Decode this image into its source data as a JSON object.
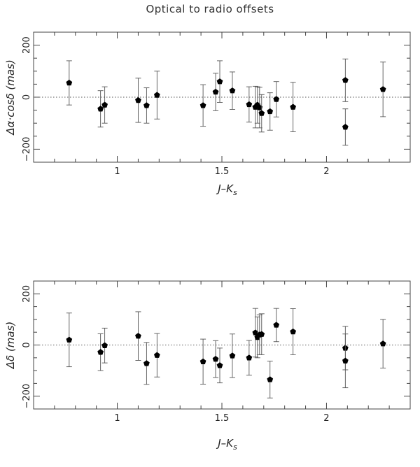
{
  "title": "Optical to radio offsets",
  "chart_data": [
    {
      "type": "scatter",
      "ylabel": "Δα·cosδ (mas)",
      "xlabel": "J–K",
      "xlabel_sub": "s",
      "xlim": [
        0.6,
        2.4
      ],
      "ylim": [
        -250,
        250
      ],
      "xticks": [
        1,
        1.5,
        2
      ],
      "xtick_labels": [
        "1",
        "1.5",
        "2"
      ],
      "yticks": [
        -200,
        0,
        200
      ],
      "ytick_labels": [
        "−200",
        "0",
        "200"
      ],
      "reference_line": 0,
      "points": [
        {
          "x": 0.77,
          "y": 55,
          "err": 85
        },
        {
          "x": 0.92,
          "y": -45,
          "err": 70
        },
        {
          "x": 0.94,
          "y": -30,
          "err": 70
        },
        {
          "x": 1.1,
          "y": -12,
          "err": 85
        },
        {
          "x": 1.14,
          "y": -32,
          "err": 68
        },
        {
          "x": 1.19,
          "y": 8,
          "err": 92
        },
        {
          "x": 1.41,
          "y": -32,
          "err": 80
        },
        {
          "x": 1.47,
          "y": 20,
          "err": 72
        },
        {
          "x": 1.49,
          "y": 60,
          "err": 80
        },
        {
          "x": 1.55,
          "y": 25,
          "err": 72
        },
        {
          "x": 1.63,
          "y": -28,
          "err": 68
        },
        {
          "x": 1.66,
          "y": -38,
          "err": 80
        },
        {
          "x": 1.67,
          "y": -30,
          "err": 70
        },
        {
          "x": 1.68,
          "y": -40,
          "err": 78
        },
        {
          "x": 1.69,
          "y": -62,
          "err": 72
        },
        {
          "x": 1.73,
          "y": -55,
          "err": 72
        },
        {
          "x": 1.76,
          "y": -8,
          "err": 68
        },
        {
          "x": 1.84,
          "y": -38,
          "err": 95
        },
        {
          "x": 2.09,
          "y": 65,
          "err": 82
        },
        {
          "x": 2.09,
          "y": -115,
          "err": 70
        },
        {
          "x": 2.27,
          "y": 30,
          "err": 105
        }
      ]
    },
    {
      "type": "scatter",
      "ylabel": "Δδ (mas)",
      "xlabel": "J–K",
      "xlabel_sub": "s",
      "xlim": [
        0.6,
        2.4
      ],
      "ylim": [
        -250,
        250
      ],
      "xticks": [
        1,
        1.5,
        2
      ],
      "xtick_labels": [
        "1",
        "1.5",
        "2"
      ],
      "yticks": [
        -200,
        0,
        200
      ],
      "ytick_labels": [
        "−200",
        "0",
        "200"
      ],
      "reference_line": 0,
      "points": [
        {
          "x": 0.77,
          "y": 20,
          "err": 105
        },
        {
          "x": 0.92,
          "y": -28,
          "err": 72
        },
        {
          "x": 0.94,
          "y": -2,
          "err": 68
        },
        {
          "x": 1.1,
          "y": 35,
          "err": 95
        },
        {
          "x": 1.14,
          "y": -72,
          "err": 82
        },
        {
          "x": 1.19,
          "y": -40,
          "err": 85
        },
        {
          "x": 1.41,
          "y": -65,
          "err": 88
        },
        {
          "x": 1.47,
          "y": -55,
          "err": 72
        },
        {
          "x": 1.49,
          "y": -80,
          "err": 68
        },
        {
          "x": 1.55,
          "y": -42,
          "err": 85
        },
        {
          "x": 1.63,
          "y": -50,
          "err": 68
        },
        {
          "x": 1.66,
          "y": 48,
          "err": 95
        },
        {
          "x": 1.67,
          "y": 30,
          "err": 80
        },
        {
          "x": 1.68,
          "y": 40,
          "err": 78
        },
        {
          "x": 1.69,
          "y": 42,
          "err": 80
        },
        {
          "x": 1.73,
          "y": -135,
          "err": 72
        },
        {
          "x": 1.76,
          "y": 78,
          "err": 65
        },
        {
          "x": 1.84,
          "y": 52,
          "err": 90
        },
        {
          "x": 2.09,
          "y": -12,
          "err": 85
        },
        {
          "x": 2.09,
          "y": -62,
          "err": 105
        },
        {
          "x": 2.27,
          "y": 5,
          "err": 95
        }
      ]
    }
  ]
}
